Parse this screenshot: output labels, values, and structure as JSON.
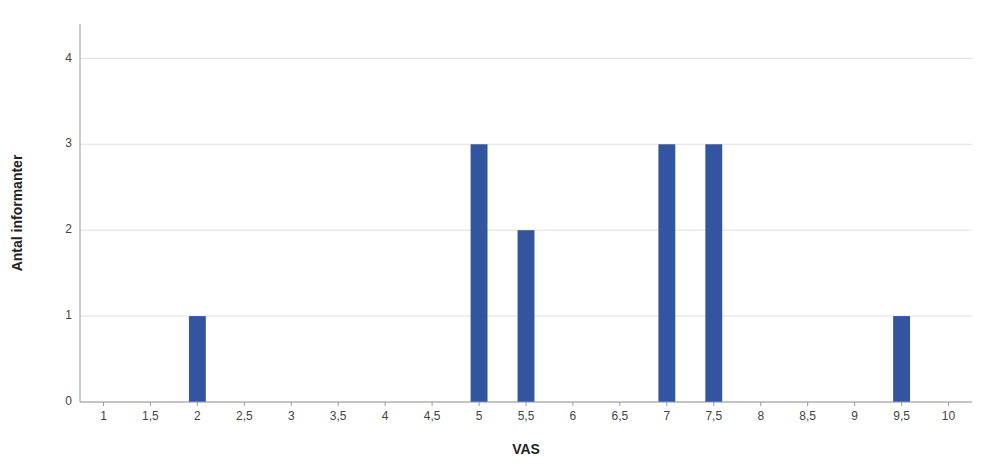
{
  "chart_data": {
    "type": "bar",
    "x": [
      2,
      5,
      5.5,
      7,
      7.5,
      9.5
    ],
    "values": [
      1,
      3,
      2,
      3,
      3,
      1
    ],
    "color": "#3355A0",
    "xlim": [
      0.75,
      10.25
    ],
    "xticks": [
      1,
      {
        "value": 1.5,
        "label": "1,5"
      },
      2,
      {
        "value": 2.5,
        "label": "2,5"
      },
      3,
      {
        "value": 3.5,
        "label": "3,5"
      },
      4,
      {
        "value": 4.5,
        "label": "4,5"
      },
      5,
      {
        "value": 5.5,
        "label": "5,5"
      },
      6,
      {
        "value": 6.5,
        "label": "6,5"
      },
      7,
      {
        "value": 7.5,
        "label": "7,5"
      },
      8,
      {
        "value": 8.5,
        "label": "8,5"
      },
      9,
      {
        "value": 9.5,
        "label": "9,5"
      },
      10
    ],
    "ylim": [
      0,
      4.4
    ],
    "yticks": [
      0,
      1,
      2,
      3,
      4
    ],
    "xlabel": "VAS",
    "ylabel": "Antal informanter",
    "grid": true
  }
}
